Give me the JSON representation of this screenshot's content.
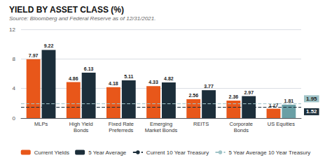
{
  "chart_data": {
    "type": "bar",
    "title": "YIELD BY ASSET CLASS (%)",
    "subtitle": "Source: Bloomberg and Federal Reserve as of 12/31/2021.",
    "categories": [
      "MLPs",
      "High Yield\nBonds",
      "Fixed Rate\nPreferreds",
      "Emerging\nMarket Bonds",
      "REITS",
      "Corporate\nBonds",
      "US Equities"
    ],
    "series": [
      {
        "name": "Current Yields",
        "color": "#E8571A",
        "values": [
          7.97,
          4.86,
          4.18,
          4.33,
          2.56,
          2.36,
          1.27
        ]
      },
      {
        "name": "5 Year Average",
        "color": "#1C2E3A",
        "colors": [
          "#1C2E3A",
          "#1C2E3A",
          "#1C2E3A",
          "#1C2E3A",
          "#1C2E3A",
          "#1C2E3A",
          "#6A9FA5"
        ],
        "values": [
          9.22,
          6.13,
          5.11,
          4.82,
          3.77,
          2.97,
          1.81
        ]
      }
    ],
    "lines": [
      {
        "name": "Current 10 Year Treasury",
        "value": 1.52,
        "color": "#1C2E3A",
        "line_style": "dashed"
      },
      {
        "name": "5 Year Average 10 Year Treasury",
        "value": 1.95,
        "color": "#A0C4C8",
        "line_style": "dashed"
      }
    ],
    "ylim": [
      0,
      12
    ],
    "yticks": [
      0,
      4,
      8,
      12
    ],
    "grid": true,
    "legend": "bottom",
    "data_labels": true
  }
}
